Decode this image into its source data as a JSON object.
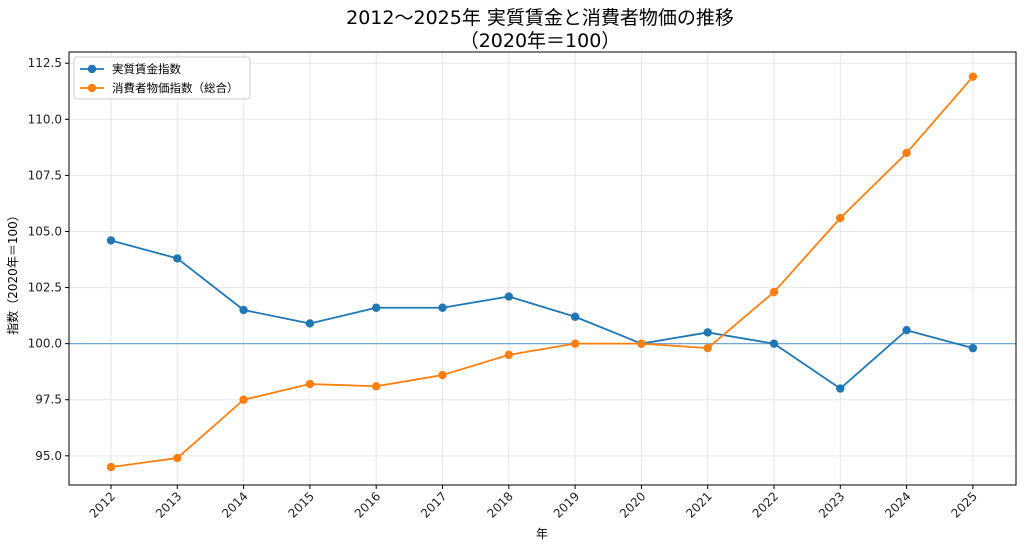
{
  "chart_data": {
    "type": "line",
    "title": "2012〜2025年 実質賃金と消費者物価の推移",
    "subtitle": "（2020年＝100）",
    "xlabel": "年",
    "ylabel": "指数（2020年＝100）",
    "categories": [
      "2012",
      "2013",
      "2014",
      "2015",
      "2016",
      "2017",
      "2018",
      "2019",
      "2020",
      "2021",
      "2022",
      "2023",
      "2024",
      "2025"
    ],
    "series": [
      {
        "name": "実質賃金指数",
        "color": "#1f77b4",
        "values": [
          104.6,
          103.8,
          101.5,
          100.9,
          101.6,
          101.6,
          102.1,
          101.2,
          100.0,
          100.5,
          100.0,
          98.0,
          100.6,
          99.8
        ]
      },
      {
        "name": "消費者物価指数（総合）",
        "color": "#ff7f0e",
        "values": [
          94.5,
          94.9,
          97.5,
          98.2,
          98.1,
          98.6,
          99.5,
          100.0,
          100.0,
          99.8,
          102.3,
          105.6,
          108.5,
          111.9
        ]
      }
    ],
    "yticks": [
      "95.0",
      "97.5",
      "100.0",
      "102.5",
      "105.0",
      "107.5",
      "110.0",
      "112.5"
    ],
    "ylim": [
      93.7,
      113.0
    ],
    "reference_line": {
      "value": 100.0,
      "color": "#5b9bd5"
    },
    "grid": true,
    "legend": "top-left"
  }
}
